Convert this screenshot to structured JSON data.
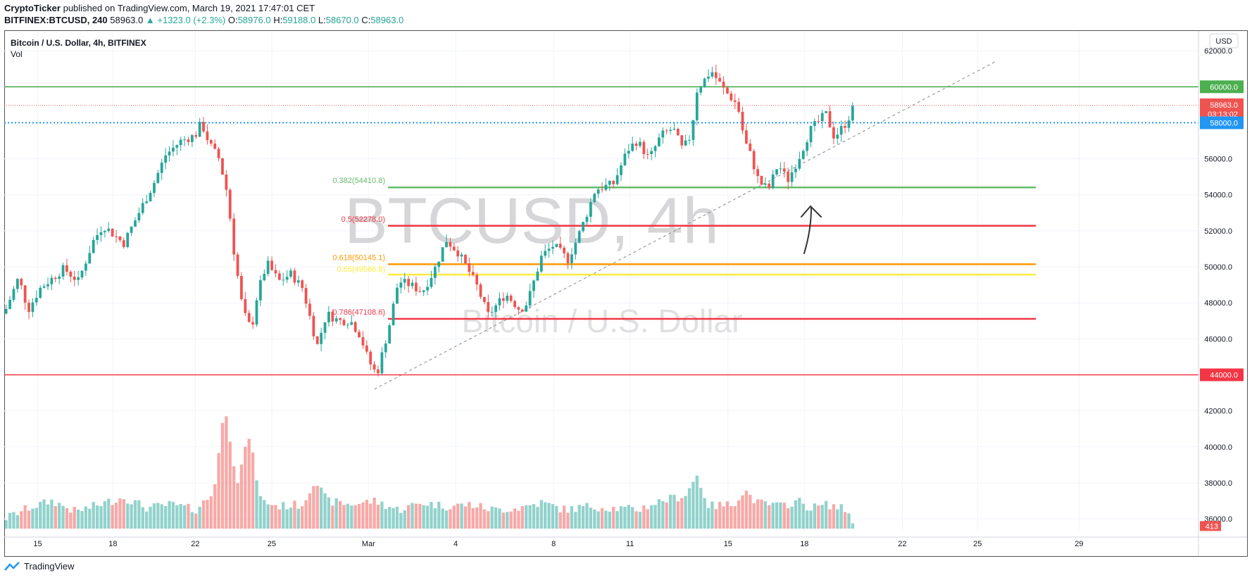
{
  "header": {
    "author": "CryptoTicker",
    "published_text": "published on TradingView.com, March 19, 2021 17:47:01 CET",
    "symbol_interval": "BITFINEX:BTCUSD, 240",
    "last": "58963.0",
    "change": "▲ +1323.0 (+2.3%)",
    "o_label": "O:",
    "o": "58976.0",
    "h_label": "H:",
    "h": "59188.0",
    "l_label": "L:",
    "l": "58670.0",
    "c_label": "C:",
    "c": "58963.0"
  },
  "legend": {
    "title": "Bitcoin / U.S. Dollar, 4h, BITFINEX",
    "vol": "Vol"
  },
  "watermark": {
    "main": "BTCUSD, 4h",
    "sub": "Bitcoin / U.S. Dollar"
  },
  "footer": {
    "brand": "TradingView"
  },
  "colors": {
    "up": "#26a69a",
    "down": "#ef5350",
    "green_line": "#4caf50",
    "red_line": "#f23645",
    "orange": "#ff9800",
    "yellow": "#ffeb3b",
    "blue": "#2196f3"
  },
  "chart_data": {
    "type": "candlestick",
    "currency_button": "USD",
    "y_ticks": [
      "62000.0",
      "60000.0",
      "56000.0",
      "54000.0",
      "52000.0",
      "50000.0",
      "48000.0",
      "46000.0",
      "44000.0",
      "42000.0",
      "40000.0",
      "38000.0",
      "36000.0"
    ],
    "ylim": [
      35300,
      63100
    ],
    "x_ticks": [
      "15",
      "18",
      "22",
      "25",
      "Mar",
      "4",
      "8",
      "11",
      "15",
      "18",
      "22",
      "25",
      "29"
    ],
    "price_labels": {
      "h60000": "60000.0",
      "last": "58963.0",
      "countdown": "03:13:02",
      "h58000": "58000.0",
      "h44000": "44000.0",
      "volume": "413"
    },
    "horizontal_lines": [
      {
        "price": 60000,
        "color": "#4caf50",
        "style": "solid"
      },
      {
        "price": 58000,
        "color": "#2196f3",
        "style": "dotted"
      },
      {
        "price": 44000,
        "color": "#f23645",
        "style": "solid"
      }
    ],
    "fib_levels": [
      {
        "label": "0.382(54410.8)",
        "price": 54410.8,
        "color": "#66bb6a"
      },
      {
        "label": "0.5(52278.0)",
        "price": 52278.0,
        "color": "#f23645"
      },
      {
        "label": "0.618(50145.1)",
        "price": 50145.1,
        "color": "#ff9800"
      },
      {
        "label": "0.65(49566.8)",
        "price": 49566.8,
        "color": "#ffeb3b"
      },
      {
        "label": "0.786(47108.6)",
        "price": 47108.6,
        "color": "#f23645"
      }
    ],
    "trendline": {
      "from": [
        0.31,
        43200
      ],
      "to": [
        0.83,
        61400
      ]
    },
    "price_anchors": [
      [
        0.0,
        47400
      ],
      [
        0.012,
        49400
      ],
      [
        0.02,
        47600
      ],
      [
        0.03,
        48800
      ],
      [
        0.05,
        49900
      ],
      [
        0.062,
        49200
      ],
      [
        0.075,
        51500
      ],
      [
        0.083,
        52300
      ],
      [
        0.1,
        51300
      ],
      [
        0.115,
        53300
      ],
      [
        0.125,
        54600
      ],
      [
        0.135,
        56200
      ],
      [
        0.148,
        57000
      ],
      [
        0.16,
        57300
      ],
      [
        0.165,
        58000
      ],
      [
        0.172,
        56800
      ],
      [
        0.18,
        56000
      ],
      [
        0.187,
        54000
      ],
      [
        0.192,
        51000
      ],
      [
        0.2,
        47500
      ],
      [
        0.207,
        46500
      ],
      [
        0.212,
        48500
      ],
      [
        0.22,
        50200
      ],
      [
        0.23,
        49200
      ],
      [
        0.24,
        49600
      ],
      [
        0.25,
        48800
      ],
      [
        0.256,
        47200
      ],
      [
        0.262,
        45600
      ],
      [
        0.27,
        47400
      ],
      [
        0.28,
        47000
      ],
      [
        0.29,
        47000
      ],
      [
        0.298,
        46200
      ],
      [
        0.305,
        44800
      ],
      [
        0.312,
        44000
      ],
      [
        0.322,
        46600
      ],
      [
        0.33,
        49200
      ],
      [
        0.34,
        49000
      ],
      [
        0.35,
        48600
      ],
      [
        0.36,
        49800
      ],
      [
        0.37,
        51500
      ],
      [
        0.38,
        50800
      ],
      [
        0.387,
        50000
      ],
      [
        0.396,
        48900
      ],
      [
        0.405,
        47300
      ],
      [
        0.42,
        48500
      ],
      [
        0.432,
        47600
      ],
      [
        0.438,
        48000
      ],
      [
        0.45,
        50600
      ],
      [
        0.46,
        51200
      ],
      [
        0.472,
        50400
      ],
      [
        0.48,
        51600
      ],
      [
        0.487,
        52800
      ],
      [
        0.495,
        54300
      ],
      [
        0.51,
        54600
      ],
      [
        0.522,
        56500
      ],
      [
        0.53,
        57000
      ],
      [
        0.54,
        56000
      ],
      [
        0.55,
        57300
      ],
      [
        0.56,
        57700
      ],
      [
        0.568,
        56500
      ],
      [
        0.575,
        57300
      ],
      [
        0.58,
        59800
      ],
      [
        0.592,
        60900
      ],
      [
        0.603,
        59800
      ],
      [
        0.614,
        59000
      ],
      [
        0.62,
        57000
      ],
      [
        0.625,
        56200
      ],
      [
        0.632,
        54700
      ],
      [
        0.64,
        54300
      ],
      [
        0.648,
        55700
      ],
      [
        0.656,
        54800
      ],
      [
        0.665,
        56000
      ],
      [
        0.675,
        57600
      ],
      [
        0.688,
        58500
      ],
      [
        0.695,
        57200
      ],
      [
        0.705,
        58000
      ],
      [
        0.712,
        58963
      ]
    ],
    "volume_anchors": [
      [
        0.0,
        36000
      ],
      [
        0.02,
        36600
      ],
      [
        0.04,
        37000
      ],
      [
        0.06,
        36400
      ],
      [
        0.08,
        36800
      ],
      [
        0.1,
        37200
      ],
      [
        0.12,
        36600
      ],
      [
        0.14,
        36800
      ],
      [
        0.16,
        36500
      ],
      [
        0.175,
        37400
      ],
      [
        0.185,
        42300
      ],
      [
        0.195,
        38000
      ],
      [
        0.205,
        40600
      ],
      [
        0.215,
        37000
      ],
      [
        0.23,
        36700
      ],
      [
        0.25,
        36800
      ],
      [
        0.26,
        38200
      ],
      [
        0.27,
        37000
      ],
      [
        0.29,
        36800
      ],
      [
        0.31,
        37000
      ],
      [
        0.33,
        36500
      ],
      [
        0.35,
        36900
      ],
      [
        0.37,
        36700
      ],
      [
        0.39,
        36800
      ],
      [
        0.41,
        36500
      ],
      [
        0.43,
        36600
      ],
      [
        0.45,
        36900
      ],
      [
        0.47,
        36500
      ],
      [
        0.49,
        36700
      ],
      [
        0.51,
        36600
      ],
      [
        0.53,
        36500
      ],
      [
        0.55,
        37000
      ],
      [
        0.57,
        37300
      ],
      [
        0.58,
        38400
      ],
      [
        0.59,
        36700
      ],
      [
        0.61,
        36800
      ],
      [
        0.62,
        37600
      ],
      [
        0.63,
        36900
      ],
      [
        0.65,
        36700
      ],
      [
        0.665,
        37000
      ],
      [
        0.675,
        36600
      ],
      [
        0.69,
        36800
      ],
      [
        0.705,
        36500
      ],
      [
        0.712,
        35800
      ]
    ]
  }
}
